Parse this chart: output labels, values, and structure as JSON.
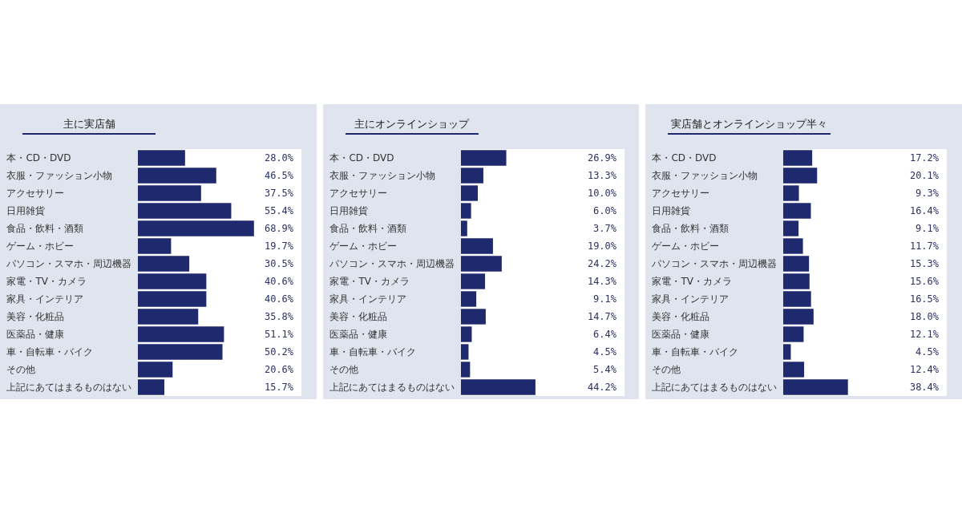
{
  "chart_data": [
    {
      "type": "bar",
      "orientation": "horizontal",
      "title": "主に実店舗",
      "categories": [
        "本・CD・DVD",
        "衣服・ファッション小物",
        "アクセサリー",
        "日用雑貨",
        "食品・飲料・酒類",
        "ゲーム・ホビー",
        "パソコン・スマホ・周辺機器",
        "家電・TV・カメラ",
        "家具・インテリア",
        "美容・化粧品",
        "医薬品・健康",
        "車・自転車・バイク",
        "その他",
        "上記にあてはまるものはない"
      ],
      "values": [
        28.0,
        46.5,
        37.5,
        55.4,
        68.9,
        19.7,
        30.5,
        40.6,
        40.6,
        35.8,
        51.1,
        50.2,
        20.6,
        15.7
      ],
      "value_labels": [
        "28.0%",
        "46.5%",
        "37.5%",
        "55.4%",
        "68.9%",
        "19.7%",
        "30.5%",
        "40.6%",
        "40.6%",
        "35.8%",
        "51.1%",
        "50.2%",
        "20.6%",
        "15.7%"
      ],
      "color": "#1f2a6e",
      "tick_labels": "y"
    },
    {
      "type": "bar",
      "orientation": "horizontal",
      "title": "主にオンラインショップ",
      "categories": [
        "本・CD・DVD",
        "衣服・ファッション小物",
        "アクセサリー",
        "日用雑貨",
        "食品・飲料・酒類",
        "ゲーム・ホビー",
        "パソコン・スマホ・周辺機器",
        "家電・TV・カメラ",
        "家具・インテリア",
        "美容・化粧品",
        "医薬品・健康",
        "車・自転車・バイク",
        "その他",
        "上記にあてはまるものはない"
      ],
      "values": [
        26.9,
        13.3,
        10.0,
        6.0,
        3.7,
        19.0,
        24.2,
        14.3,
        9.1,
        14.7,
        6.4,
        4.5,
        5.4,
        44.2
      ],
      "value_labels": [
        "26.9%",
        "13.3%",
        "10.0%",
        "6.0%",
        "3.7%",
        "19.0%",
        "24.2%",
        "14.3%",
        "9.1%",
        "14.7%",
        "6.4%",
        "4.5%",
        "5.4%",
        "44.2%"
      ],
      "color": "#1f2a6e",
      "tick_labels": "y"
    },
    {
      "type": "bar",
      "orientation": "horizontal",
      "title": "実店舗とオンラインショップ半々",
      "categories": [
        "本・CD・DVD",
        "衣服・ファッション小物",
        "アクセサリー",
        "日用雑貨",
        "食品・飲料・酒類",
        "ゲーム・ホビー",
        "パソコン・スマホ・周辺機器",
        "家電・TV・カメラ",
        "家具・インテリア",
        "美容・化粧品",
        "医薬品・健康",
        "車・自転車・バイク",
        "その他",
        "上記にあてはまるものはない"
      ],
      "values": [
        17.2,
        20.1,
        9.3,
        16.4,
        9.1,
        11.7,
        15.3,
        15.6,
        16.5,
        18.0,
        12.1,
        4.5,
        12.4,
        38.4
      ],
      "value_labels": [
        "17.2%",
        "20.1%",
        "9.3%",
        "16.4%",
        "9.1%",
        "11.7%",
        "15.3%",
        "15.6%",
        "16.5%",
        "18.0%",
        "12.1%",
        "4.5%",
        "12.4%",
        "38.4%"
      ],
      "color": "#1f2a6e",
      "tick_labels": "y"
    }
  ]
}
